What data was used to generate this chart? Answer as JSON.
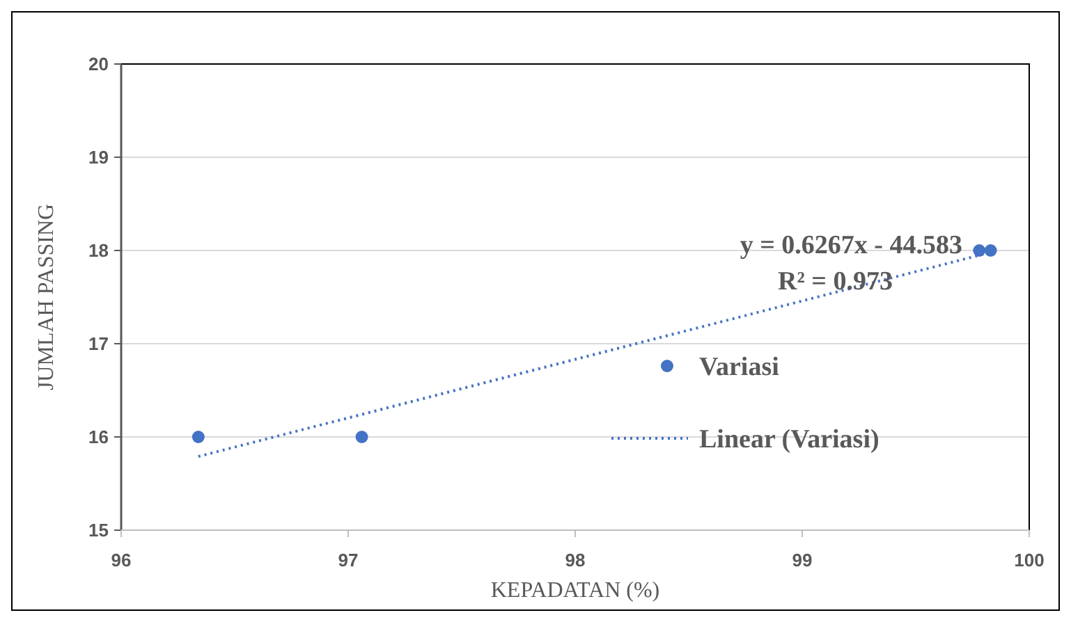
{
  "chart_data": {
    "type": "scatter",
    "xlabel": "KEPADATAN  (%)",
    "ylabel": "JUMLAH PASSING",
    "xlim": [
      96,
      100
    ],
    "xticks": [
      96,
      97,
      98,
      99,
      100
    ],
    "ylim": [
      15,
      20
    ],
    "yticks": [
      15,
      16,
      17,
      18,
      19,
      20
    ],
    "grid": "y",
    "legend": "right",
    "marker": "circle",
    "annotations": [
      "y = 0.6267x - 44.583",
      "R² = 0.973"
    ],
    "series": [
      {
        "name": "Variasi",
        "color": "#4472c4",
        "x": [
          96.34,
          97.06,
          99.78,
          99.83
        ],
        "values": [
          16,
          16,
          18,
          18
        ]
      },
      {
        "name": "Linear (Variasi)",
        "type": "line",
        "color": "#4472c4",
        "line_style": "dotted",
        "marker": "none",
        "x": [
          96.34,
          99.83
        ],
        "values": [
          15.79,
          17.98
        ]
      }
    ]
  }
}
